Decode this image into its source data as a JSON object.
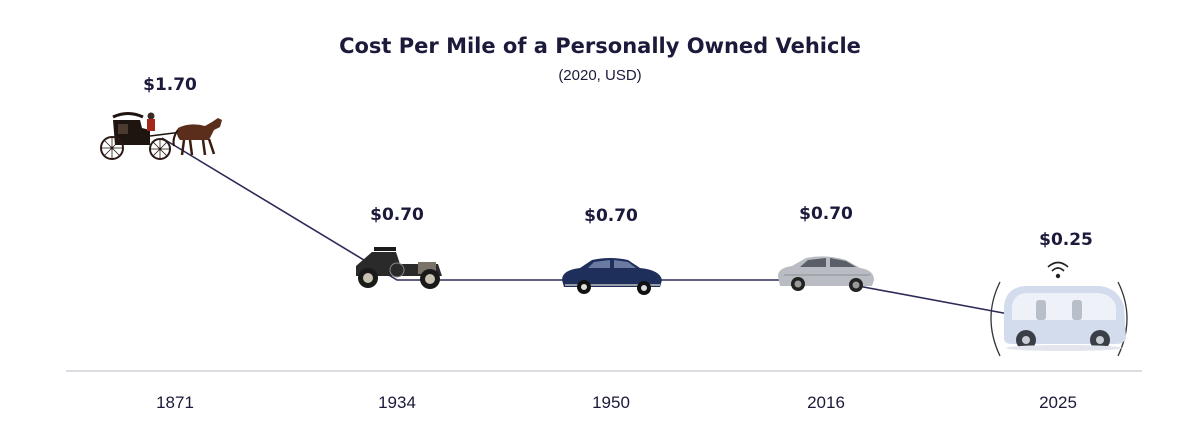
{
  "chart_data": {
    "type": "line",
    "title": "Cost Per Mile of a Personally Owned Vehicle",
    "subtitle": "(2020, USD)",
    "xlabel": "",
    "ylabel": "",
    "categories": [
      "1871",
      "1934",
      "1950",
      "2016",
      "2025"
    ],
    "values": [
      1.7,
      0.7,
      0.7,
      0.7,
      0.25
    ],
    "data_labels": [
      "$1.70",
      "$0.70",
      "$0.70",
      "$0.70",
      "$0.25"
    ],
    "markers": [
      "horse-carriage-icon",
      "vintage-car-icon",
      "1950s-sedan-icon",
      "modern-sedan-icon",
      "autonomous-vehicle-icon"
    ],
    "grid": false,
    "legend": "none",
    "colors": {
      "line": "#2c2a57",
      "text": "#1b1a3a",
      "baseline": "#d0d0d8"
    }
  }
}
